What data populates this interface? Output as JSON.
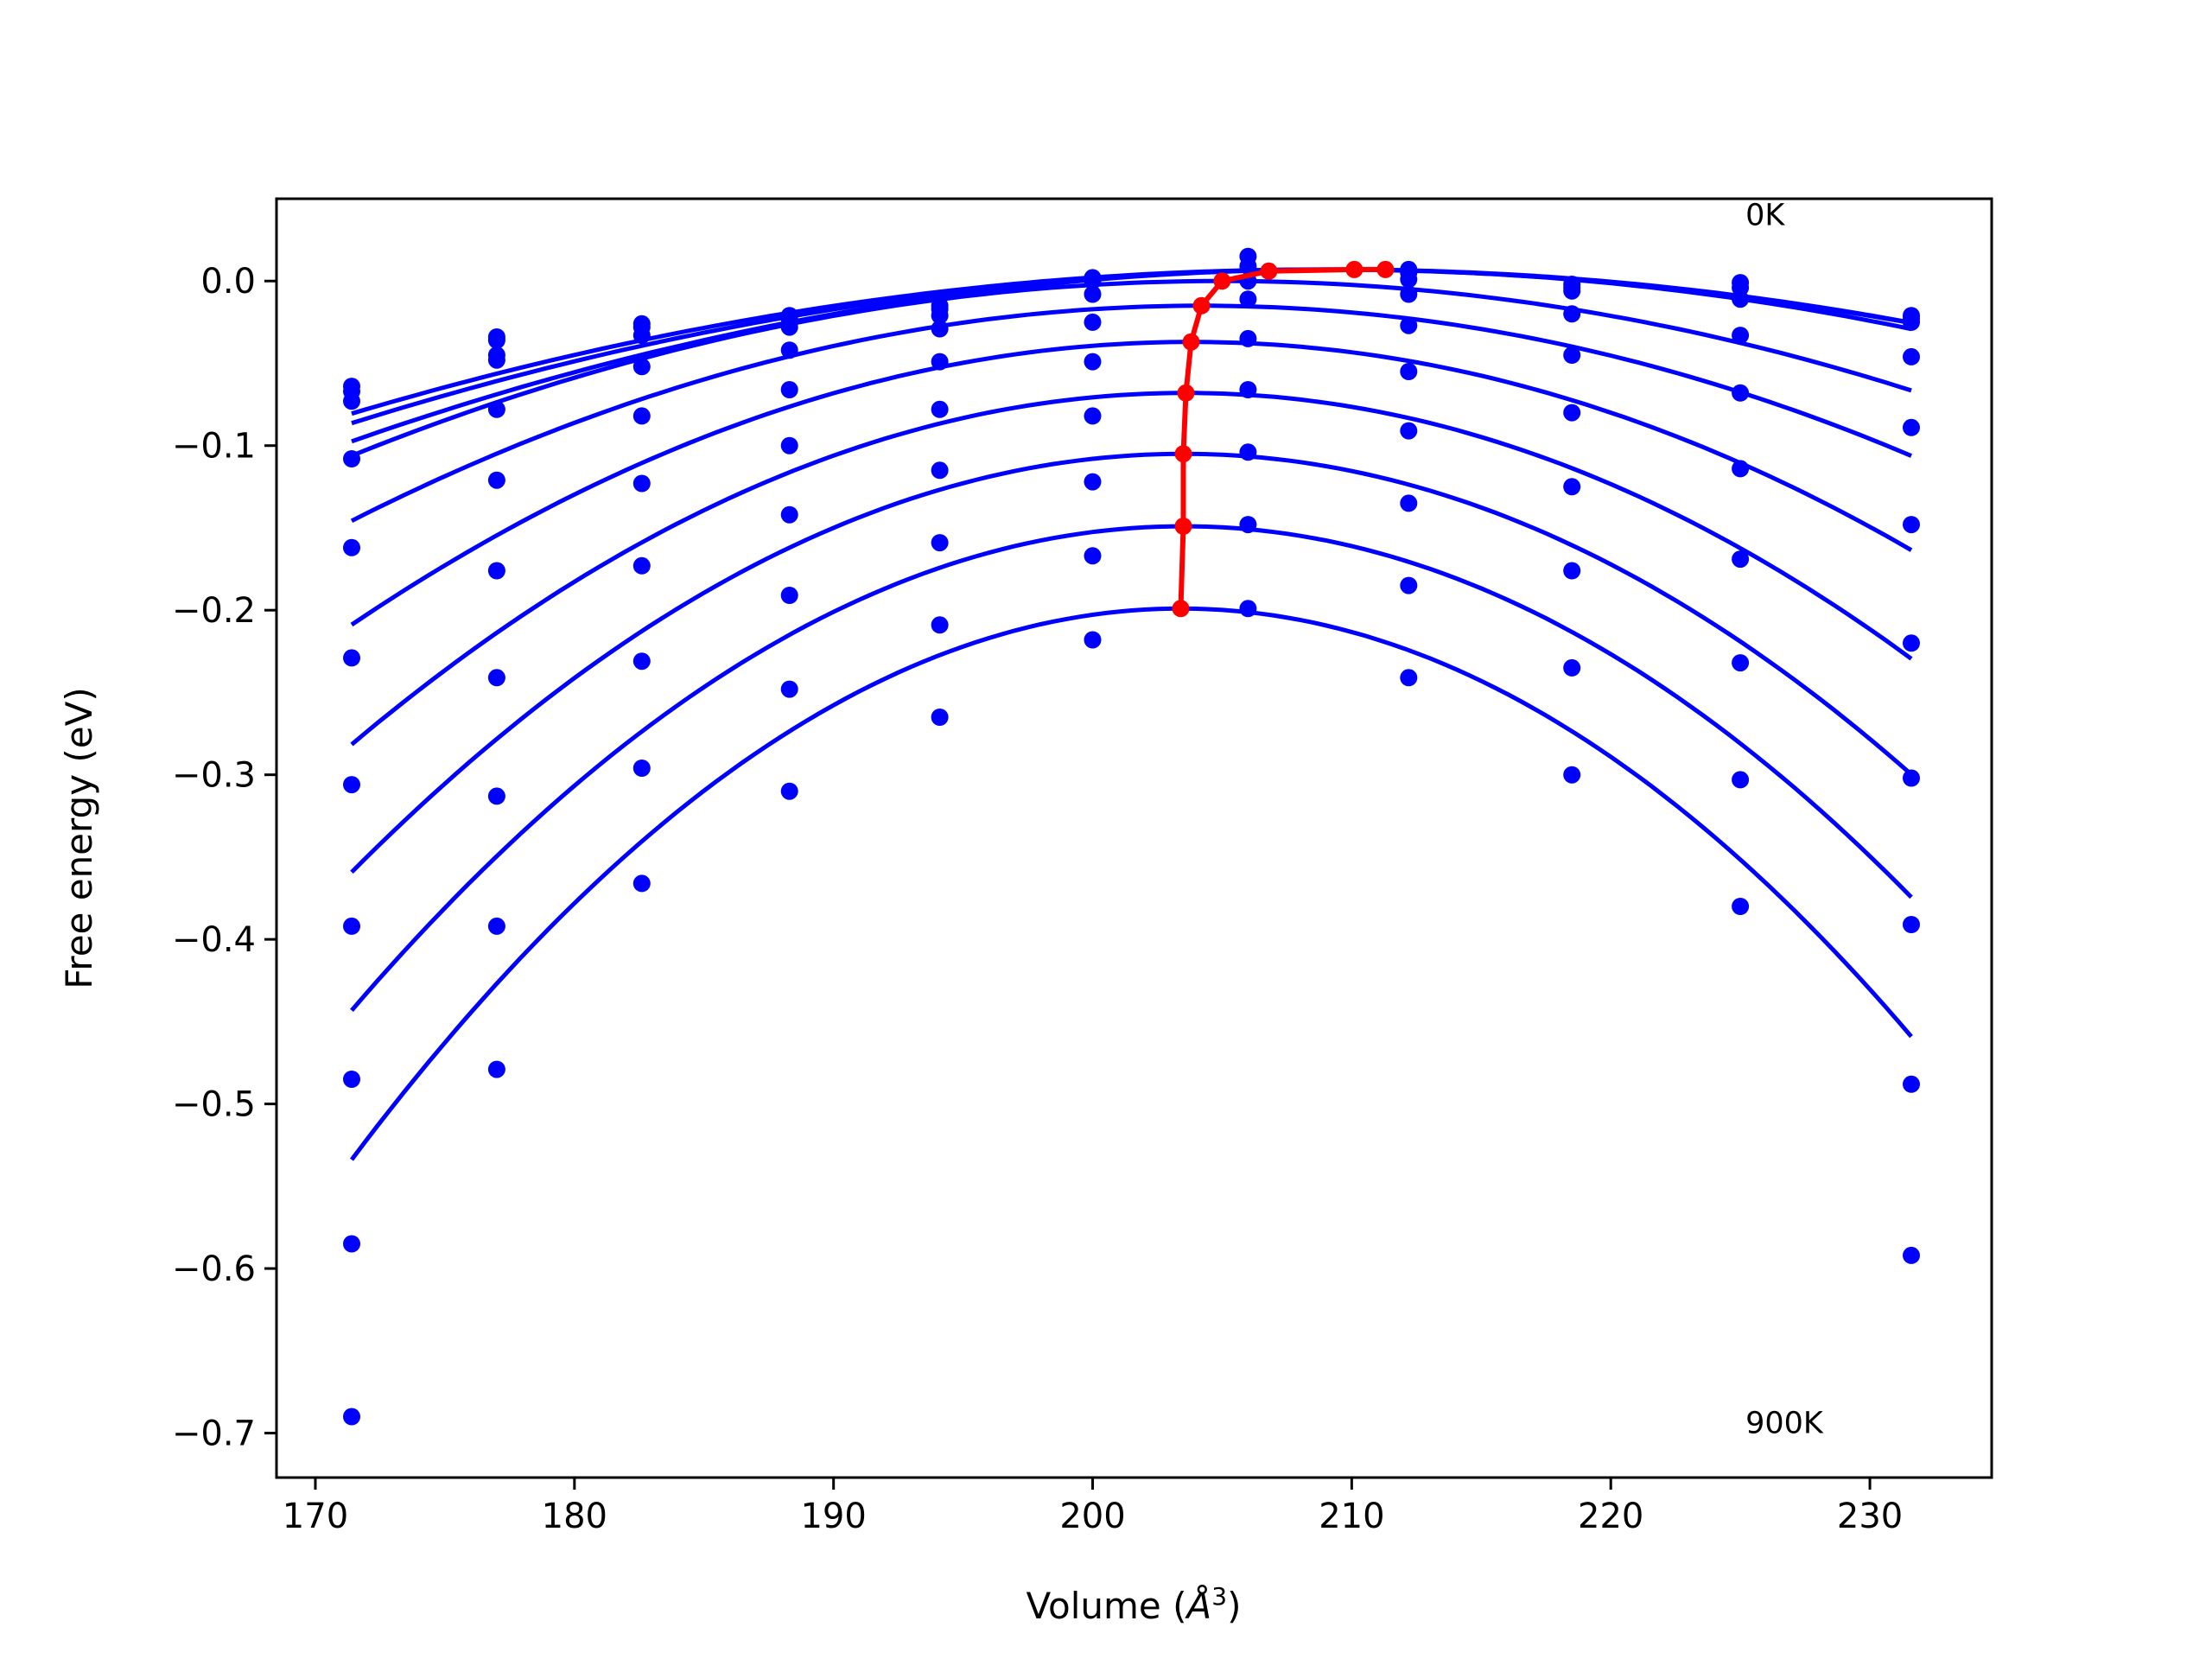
{
  "chart_data": {
    "type": "scatter",
    "xlabel": "Volume (",
    "xlabel_symbol": "Å",
    "xlabel_exp": "3",
    "xlabel_close": ")",
    "ylabel": "Free energy (eV)",
    "xlim": [
      168.5,
      234.7
    ],
    "ylim": [
      -0.727,
      0.05
    ],
    "x_ticks": [
      170,
      180,
      190,
      200,
      210,
      220,
      230
    ],
    "y_ticks": [
      0.0,
      -0.1,
      -0.2,
      -0.3,
      -0.4,
      -0.5,
      -0.6,
      -0.7
    ],
    "x_tick_labels": [
      "170",
      "180",
      "190",
      "200",
      "210",
      "220",
      "230"
    ],
    "y_tick_labels": [
      "0.0",
      "−0.1",
      "−0.2",
      "−0.3",
      "−0.4",
      "−0.5",
      "−0.6",
      "−0.7"
    ],
    "grid": false,
    "colors": {
      "fit": "#0000ff",
      "points": "#0000ff",
      "minima": "#ff0000"
    },
    "annotations": [
      {
        "text": "0K",
        "x": 225.2,
        "y": 0.034
      },
      {
        "text": "900K",
        "x": 225.2,
        "y": -0.7
      }
    ],
    "x": [
      171.4,
      177.0,
      182.6,
      188.3,
      194.1,
      200.0,
      206.0,
      212.2,
      218.5,
      225.0,
      231.6
    ],
    "series": [
      {
        "values": [
          -0.064,
          -0.034,
          -0.026,
          -0.021,
          -0.015,
          0.002,
          0.015,
          0.007,
          -0.002,
          -0.001,
          -0.021
        ],
        "fit": {
          "vmin": 208.8,
          "emin": 0.007,
          "k": 6.26e-05
        }
      },
      {
        "values": [
          -0.067,
          -0.036,
          -0.028,
          -0.023,
          -0.017,
          0.0,
          0.009,
          0.005,
          -0.004,
          -0.004,
          -0.023
        ],
        "fit": {
          "vmin": 209.3,
          "emin": 0.007,
          "k": 6.5e-05
        }
      },
      {
        "values": [
          -0.073,
          -0.045,
          -0.033,
          -0.028,
          -0.021,
          -0.008,
          0.0,
          0.001,
          -0.006,
          -0.011,
          -0.025
        ],
        "fit": {
          "vmin": 209.3,
          "emin": 0.007,
          "k": 7.27e-05
        }
      },
      {
        "values": [
          -0.108,
          -0.048,
          -0.052,
          -0.042,
          -0.029,
          -0.025,
          -0.011,
          -0.008,
          -0.02,
          -0.033,
          -0.046
        ],
        "fit": {
          "vmin": 205.0,
          "emin": 0.0,
          "k": 9.4e-05
        }
      },
      {
        "values": [
          -0.162,
          -0.078,
          -0.082,
          -0.066,
          -0.049,
          -0.049,
          -0.035,
          -0.027,
          -0.045,
          -0.068,
          -0.089
        ],
        "fit": {
          "vmin": 204.2,
          "emin": -0.015,
          "k": 0.0001215
        }
      },
      {
        "values": [
          -0.229,
          -0.121,
          -0.123,
          -0.1,
          -0.078,
          -0.082,
          -0.066,
          -0.055,
          -0.08,
          -0.114,
          -0.148
        ],
        "fit": {
          "vmin": 203.8,
          "emin": -0.037,
          "k": 0.0001637
        }
      },
      {
        "values": [
          -0.306,
          -0.176,
          -0.173,
          -0.142,
          -0.115,
          -0.122,
          -0.104,
          -0.091,
          -0.125,
          -0.169,
          -0.22
        ],
        "fit": {
          "vmin": 203.6,
          "emin": -0.068,
          "k": 0.000206
        }
      },
      {
        "values": [
          -0.392,
          -0.241,
          -0.231,
          -0.191,
          -0.159,
          -0.167,
          -0.148,
          -0.135,
          -0.176,
          -0.232,
          -0.302
        ],
        "fit": {
          "vmin": 203.5,
          "emin": -0.105,
          "k": 0.0002467
        }
      },
      {
        "values": [
          -0.485,
          -0.313,
          -0.296,
          -0.248,
          -0.209,
          -0.218,
          -0.199,
          -0.185,
          -0.235,
          -0.303,
          -0.391
        ],
        "fit": {
          "vmin": 203.5,
          "emin": -0.149,
          "k": 0.0002855
        }
      },
      {
        "values": [
          -0.585,
          -0.392,
          -0.366,
          -0.31,
          -0.265,
          null,
          null,
          -0.241,
          -0.3,
          -0.38,
          -0.488
        ],
        "fit": {
          "vmin": 203.4,
          "emin": -0.199,
          "k": 0.000327
        }
      },
      {
        "values": [
          -0.69,
          -0.479,
          null,
          null,
          null,
          null,
          null,
          null,
          null,
          null,
          -0.592
        ],
        "fit": null
      }
    ],
    "minima_curve": {
      "x": [
        211.3,
        210.1,
        206.8,
        205.0,
        204.2,
        203.8,
        203.6,
        203.5,
        203.5,
        203.4
      ],
      "y": [
        0.007,
        0.007,
        0.006,
        0.0,
        -0.015,
        -0.037,
        -0.068,
        -0.105,
        -0.149,
        -0.199
      ]
    }
  }
}
